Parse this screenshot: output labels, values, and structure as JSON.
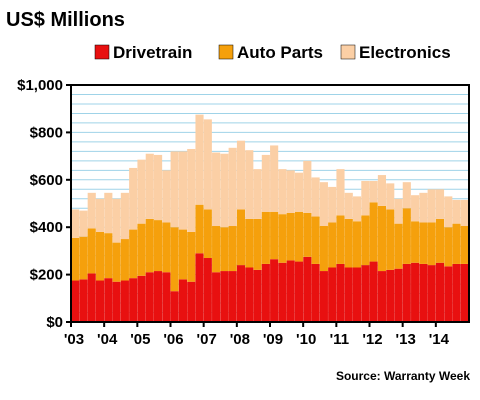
{
  "chart_data": {
    "type": "bar",
    "stacked": true,
    "title": "US$ Millions",
    "source": "Source: Warranty Week",
    "ylim": [
      0,
      1000
    ],
    "y_ticks": [
      "$0",
      "$200",
      "$400",
      "$600",
      "$800",
      "$1,000"
    ],
    "y_tick_values": [
      0,
      200,
      400,
      600,
      800,
      1000
    ],
    "x_tick_labels": [
      "'03",
      "'04",
      "'05",
      "'06",
      "'07",
      "'08",
      "'09",
      "'10",
      "'11",
      "'12",
      "'13",
      "'14"
    ],
    "grid": true,
    "legend_position": "top",
    "categories": [
      "2003 Q1",
      "2003 Q2",
      "2003 Q3",
      "2003 Q4",
      "2004 Q1",
      "2004 Q2",
      "2004 Q3",
      "2004 Q4",
      "2005 Q1",
      "2005 Q2",
      "2005 Q3",
      "2005 Q4",
      "2006 Q1",
      "2006 Q2",
      "2006 Q3",
      "2006 Q4",
      "2007 Q1",
      "2007 Q2",
      "2007 Q3",
      "2007 Q4",
      "2008 Q1",
      "2008 Q2",
      "2008 Q3",
      "2008 Q4",
      "2009 Q1",
      "2009 Q2",
      "2009 Q3",
      "2009 Q4",
      "2010 Q1",
      "2010 Q2",
      "2010 Q3",
      "2010 Q4",
      "2011 Q1",
      "2011 Q2",
      "2011 Q3",
      "2011 Q4",
      "2012 Q1",
      "2012 Q2",
      "2012 Q3",
      "2012 Q4",
      "2013 Q1",
      "2013 Q2",
      "2013 Q3",
      "2013 Q4",
      "2014 Q1",
      "2014 Q2",
      "2014 Q3",
      "2014 Q4"
    ],
    "series": [
      {
        "name": "Drivetrain",
        "color": "#e81010",
        "values": [
          175,
          180,
          205,
          175,
          185,
          170,
          175,
          185,
          195,
          210,
          215,
          210,
          130,
          180,
          170,
          290,
          270,
          210,
          215,
          215,
          240,
          230,
          220,
          245,
          265,
          250,
          260,
          255,
          275,
          245,
          215,
          230,
          245,
          230,
          230,
          240,
          255,
          215,
          220,
          225,
          245,
          250,
          245,
          240,
          250,
          235,
          245,
          245
        ]
      },
      {
        "name": "Auto Parts",
        "color": "#f5a00c",
        "values": [
          180,
          180,
          190,
          205,
          190,
          165,
          175,
          205,
          220,
          225,
          215,
          210,
          270,
          210,
          210,
          205,
          205,
          195,
          185,
          190,
          235,
          205,
          215,
          220,
          200,
          205,
          200,
          210,
          185,
          200,
          190,
          190,
          205,
          205,
          195,
          210,
          250,
          275,
          255,
          190,
          235,
          175,
          175,
          180,
          185,
          165,
          170,
          160
        ]
      },
      {
        "name": "Electronics",
        "color": "#fbcfa5",
        "values": [
          120,
          110,
          150,
          140,
          170,
          185,
          195,
          260,
          270,
          275,
          275,
          220,
          320,
          330,
          350,
          380,
          380,
          310,
          310,
          330,
          290,
          290,
          210,
          240,
          280,
          190,
          180,
          165,
          220,
          165,
          185,
          150,
          195,
          110,
          105,
          145,
          90,
          130,
          110,
          105,
          110,
          110,
          125,
          140,
          125,
          130,
          100,
          110
        ]
      }
    ]
  }
}
